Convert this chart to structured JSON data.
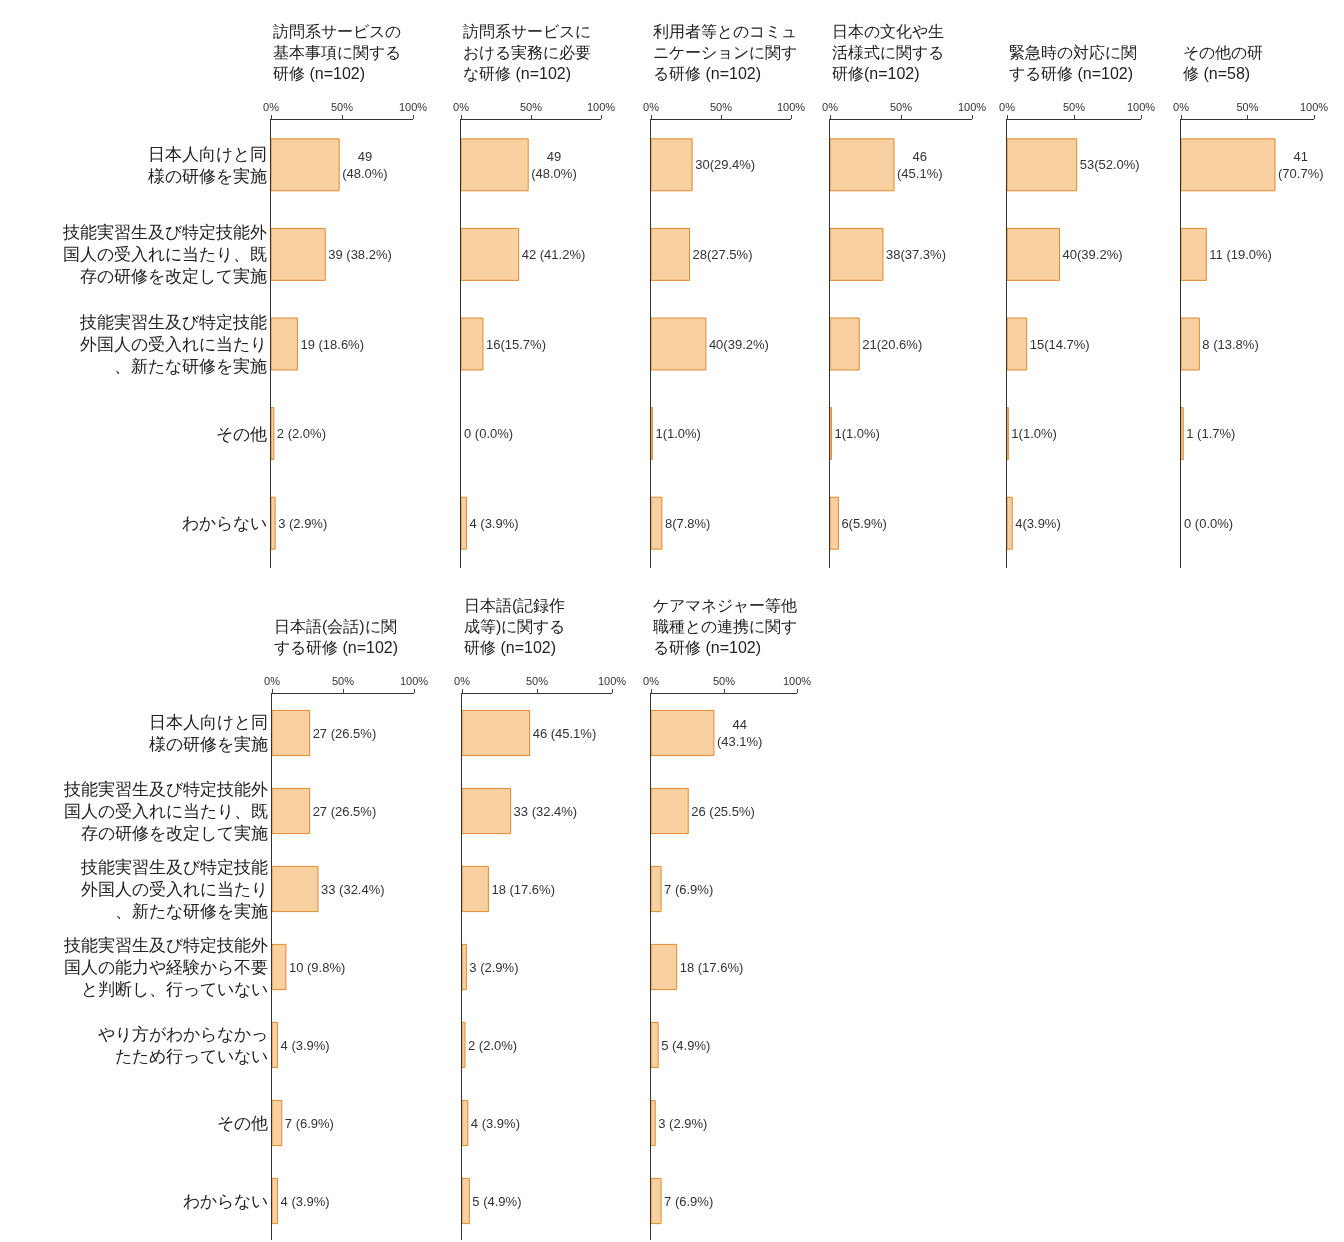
{
  "chart_data": [
    {
      "type": "bar",
      "orientation": "horizontal",
      "title": "訪問系サービスの基本事項に関する研修 (n=102)",
      "categories": [
        "日本人向けと同様の研修を実施",
        "技能実習生及び特定技能外国人の受入れに当たり、既存の研修を改定して実施",
        "技能実習生及び特定技能外国人の受入れに当たり、新たな研修を実施",
        "その他",
        "わからない"
      ],
      "values": [
        48.0,
        38.2,
        18.6,
        2.0,
        2.9
      ],
      "value_labels": [
        "49\n(48.0%)",
        "39 (38.2%)",
        "19 (18.6%)",
        "2 (2.0%)",
        "3 (2.9%)"
      ],
      "color": "#f9d0a0",
      "xlim": [
        0,
        100
      ],
      "xticks": [
        {
          "value": 0,
          "label": "0%"
        },
        {
          "value": 50,
          "label": "50%"
        },
        {
          "value": 100,
          "label": "100%"
        }
      ]
    },
    {
      "type": "bar",
      "orientation": "horizontal",
      "title": "訪問系サービスにおける実務に必要な研修 (n=102)",
      "categories": [
        "日本人向けと同様の研修を実施",
        "技能実習生及び特定技能外国人の受入れに当たり、既存の研修を改定して実施",
        "技能実習生及び特定技能外国人の受入れに当たり、新たな研修を実施",
        "その他",
        "わからない"
      ],
      "values": [
        48.0,
        41.2,
        15.7,
        0.0,
        3.9
      ],
      "value_labels": [
        "49\n(48.0%)",
        "42 (41.2%)",
        "16(15.7%)",
        "0 (0.0%)",
        "4 (3.9%)"
      ],
      "color": "#f9d0a0",
      "xlim": [
        0,
        100
      ],
      "xticks": [
        {
          "value": 0,
          "label": "0%"
        },
        {
          "value": 50,
          "label": "50%"
        },
        {
          "value": 100,
          "label": "100%"
        }
      ],
      "tick_labels": "x"
    },
    {
      "type": "bar",
      "orientation": "horizontal",
      "title": "利用者等とのコミュニケーションに関する研修 (n=102)",
      "categories": [
        "日本人向けと同様の研修を実施",
        "技能実習生及び特定技能外国人の受入れに当たり、既存の研修を改定して実施",
        "技能実習生及び特定技能外国人の受入れに当たり、新たな研修を実施",
        "その他",
        "わからない"
      ],
      "values": [
        29.4,
        27.5,
        39.2,
        1.0,
        7.8
      ],
      "value_labels": [
        "30(29.4%)",
        "28(27.5%)",
        "40(39.2%)",
        "1(1.0%)",
        "8(7.8%)"
      ],
      "color": "#f9d0a0",
      "xlim": [
        0,
        100
      ],
      "xticks": [
        {
          "value": 0,
          "label": "0%"
        },
        {
          "value": 50,
          "label": "50%"
        },
        {
          "value": 100,
          "label": "100%"
        }
      ],
      "tick_labels": "x"
    },
    {
      "type": "bar",
      "orientation": "horizontal",
      "title": "日本の文化や生活様式に関する研修(n=102)",
      "categories": [
        "日本人向けと同様の研修を実施",
        "技能実習生及び特定技能外国人の受入れに当たり、既存の研修を改定して実施",
        "技能実習生及び特定技能外国人の受入れに当たり、新たな研修を実施",
        "その他",
        "わからない"
      ],
      "values": [
        45.1,
        37.3,
        20.6,
        1.0,
        5.9
      ],
      "value_labels": [
        "46\n(45.1%)",
        "38(37.3%)",
        "21(20.6%)",
        "1(1.0%)",
        "6(5.9%)"
      ],
      "color": "#f9d0a0",
      "xlim": [
        0,
        100
      ],
      "xticks": [
        {
          "value": 0,
          "label": "0%"
        },
        {
          "value": 50,
          "label": "50%"
        },
        {
          "value": 100,
          "label": "100%"
        }
      ],
      "tick_labels": "x"
    },
    {
      "type": "bar",
      "orientation": "horizontal",
      "title": "緊急時の対応に関する研修 (n=102)",
      "categories": [
        "日本人向けと同様の研修を実施",
        "技能実習生及び特定技能外国人の受入れに当たり、既存の研修を改定して実施",
        "技能実習生及び特定技能外国人の受入れに当たり、新たな研修を実施",
        "その他",
        "わからない"
      ],
      "values": [
        52.0,
        39.2,
        14.7,
        1.0,
        3.9
      ],
      "value_labels": [
        "53(52.0%)",
        "40(39.2%)",
        "15(14.7%)",
        "1(1.0%)",
        "4(3.9%)"
      ],
      "color": "#f9d0a0",
      "xlim": [
        0,
        100
      ],
      "xticks": [
        {
          "value": 0,
          "label": "0%"
        },
        {
          "value": 50,
          "label": "50%"
        },
        {
          "value": 100,
          "label": "100%"
        }
      ],
      "tick_labels": "x"
    },
    {
      "type": "bar",
      "orientation": "horizontal",
      "title": "その他の研修 (n=58)",
      "categories": [
        "日本人向けと同様の研修を実施",
        "技能実習生及び特定技能外国人の受入れに当たり、既存の研修を改定して実施",
        "技能実習生及び特定技能外国人の受入れに当たり、新たな研修を実施",
        "その他",
        "わからない"
      ],
      "values": [
        70.7,
        19.0,
        13.8,
        1.7,
        0.0
      ],
      "value_labels": [
        "41\n(70.7%)",
        "11 (19.0%)",
        "8 (13.8%)",
        "1 (1.7%)",
        "0 (0.0%)"
      ],
      "color": "#f9d0a0",
      "xlim": [
        0,
        100
      ],
      "xticks": [
        {
          "value": 0,
          "label": "0%"
        },
        {
          "value": 50,
          "label": "50%"
        },
        {
          "value": 100,
          "label": "100%"
        }
      ],
      "tick_labels": "x"
    },
    {
      "type": "bar",
      "orientation": "horizontal",
      "title": "日本語(会話)に関する研修 (n=102)",
      "categories": [
        "日本人向けと同様の研修を実施",
        "技能実習生及び特定技能外国人の受入れに当たり、既存の研修を改定して実施",
        "技能実習生及び特定技能外国人の受入れに当たり、新たな研修を実施",
        "技能実習生及び特定技能外国人の能力や経験から不要と判断し、行っていない",
        "やり方がわからなかったため行っていない",
        "その他",
        "わからない"
      ],
      "values": [
        26.5,
        26.5,
        32.4,
        9.8,
        3.9,
        6.9,
        3.9
      ],
      "value_labels": [
        "27 (26.5%)",
        "27 (26.5%)",
        "33 (32.4%)",
        "10 (9.8%)",
        "4 (3.9%)",
        "7 (6.9%)",
        "4 (3.9%)"
      ],
      "color": "#f9d0a0",
      "xlim": [
        0,
        100
      ],
      "xticks": [
        {
          "value": 0,
          "label": "0%"
        },
        {
          "value": 50,
          "label": "50%"
        },
        {
          "value": 100,
          "label": "100%"
        }
      ]
    },
    {
      "type": "bar",
      "orientation": "horizontal",
      "title": "日本語(記録作成等)に関する研修 (n=102)",
      "categories": [
        "日本人向けと同様の研修を実施",
        "技能実習生及び特定技能外国人の受入れに当たり、既存の研修を改定して実施",
        "技能実習生及び特定技能外国人の受入れに当たり、新たな研修を実施",
        "技能実習生及び特定技能外国人の能力や経験から不要と判断し、行っていない",
        "やり方がわからなかったため行っていない",
        "その他",
        "わからない"
      ],
      "values": [
        45.1,
        32.4,
        17.6,
        2.9,
        2.0,
        3.9,
        4.9
      ],
      "value_labels": [
        "46 (45.1%)",
        "33 (32.4%)",
        "18 (17.6%)",
        "3 (2.9%)",
        "2 (2.0%)",
        "4 (3.9%)",
        "5 (4.9%)"
      ],
      "color": "#f9d0a0",
      "xlim": [
        0,
        100
      ],
      "xticks": [
        {
          "value": 0,
          "label": "0%"
        },
        {
          "value": 50,
          "label": "50%"
        },
        {
          "value": 100,
          "label": "100%"
        }
      ],
      "tick_labels": "x"
    },
    {
      "type": "bar",
      "orientation": "horizontal",
      "title": "ケアマネジャー等他職種との連携に関する研修 (n=102)",
      "categories": [
        "日本人向けと同様の研修を実施",
        "技能実習生及び特定技能外国人の受入れに当たり、既存の研修を改定して実施",
        "技能実習生及び特定技能外国人の受入れに当たり、新たな研修を実施",
        "技能実習生及び特定技能外国人の能力や経験から不要と判断し、行っていない",
        "やり方がわからなかったため行っていない",
        "その他",
        "わからない"
      ],
      "values": [
        43.1,
        25.5,
        6.9,
        17.6,
        4.9,
        2.9,
        6.9
      ],
      "value_labels": [
        "44\n(43.1%)",
        "26 (25.5%)",
        "7 (6.9%)",
        "18 (17.6%)",
        "5 (4.9%)",
        "3 (2.9%)",
        "7 (6.9%)"
      ],
      "color": "#f9d0a0",
      "xlim": [
        0,
        100
      ],
      "xticks": [
        {
          "value": 0,
          "label": "0%"
        },
        {
          "value": 50,
          "label": "50%"
        },
        {
          "value": 100,
          "label": "100%"
        }
      ],
      "tick_labels": "x"
    }
  ]
}
